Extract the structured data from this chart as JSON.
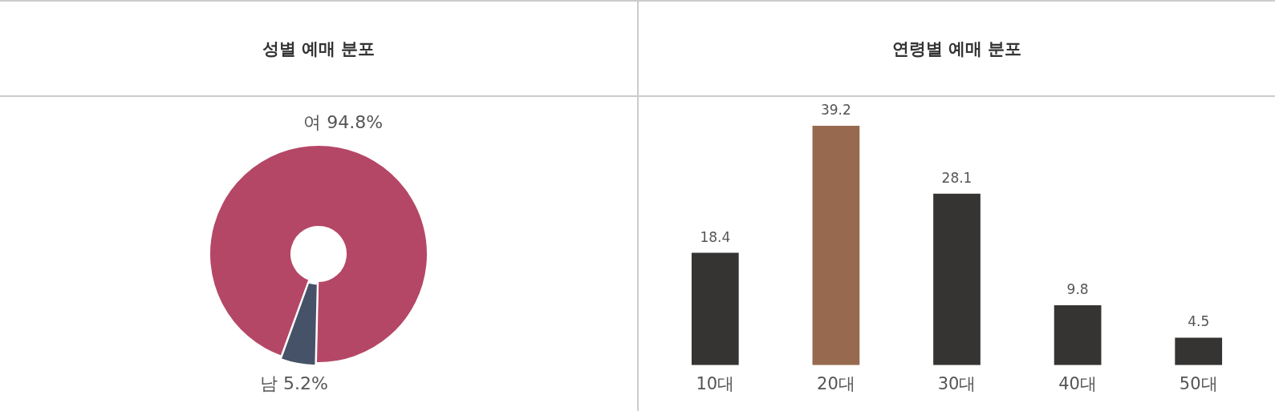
{
  "chart_data": [
    {
      "type": "donut",
      "title": "성별 예매 분포",
      "categories": [
        "여",
        "남"
      ],
      "values": [
        94.8,
        5.2
      ],
      "colors": [
        "#b54766",
        "#465268"
      ],
      "value_labels": [
        "94.8%",
        "5.2%"
      ],
      "legend": false
    },
    {
      "type": "bar",
      "title": "연령별 예매 분포",
      "categories": [
        "10대",
        "20대",
        "30대",
        "40대",
        "50대"
      ],
      "values": [
        18.4,
        39.2,
        28.1,
        9.8,
        4.5
      ],
      "colors": [
        "#363432",
        "#976a4f",
        "#363432",
        "#363432",
        "#363432"
      ],
      "data_labels": true,
      "legend": false,
      "grid": false,
      "tick_labels": "x"
    }
  ]
}
